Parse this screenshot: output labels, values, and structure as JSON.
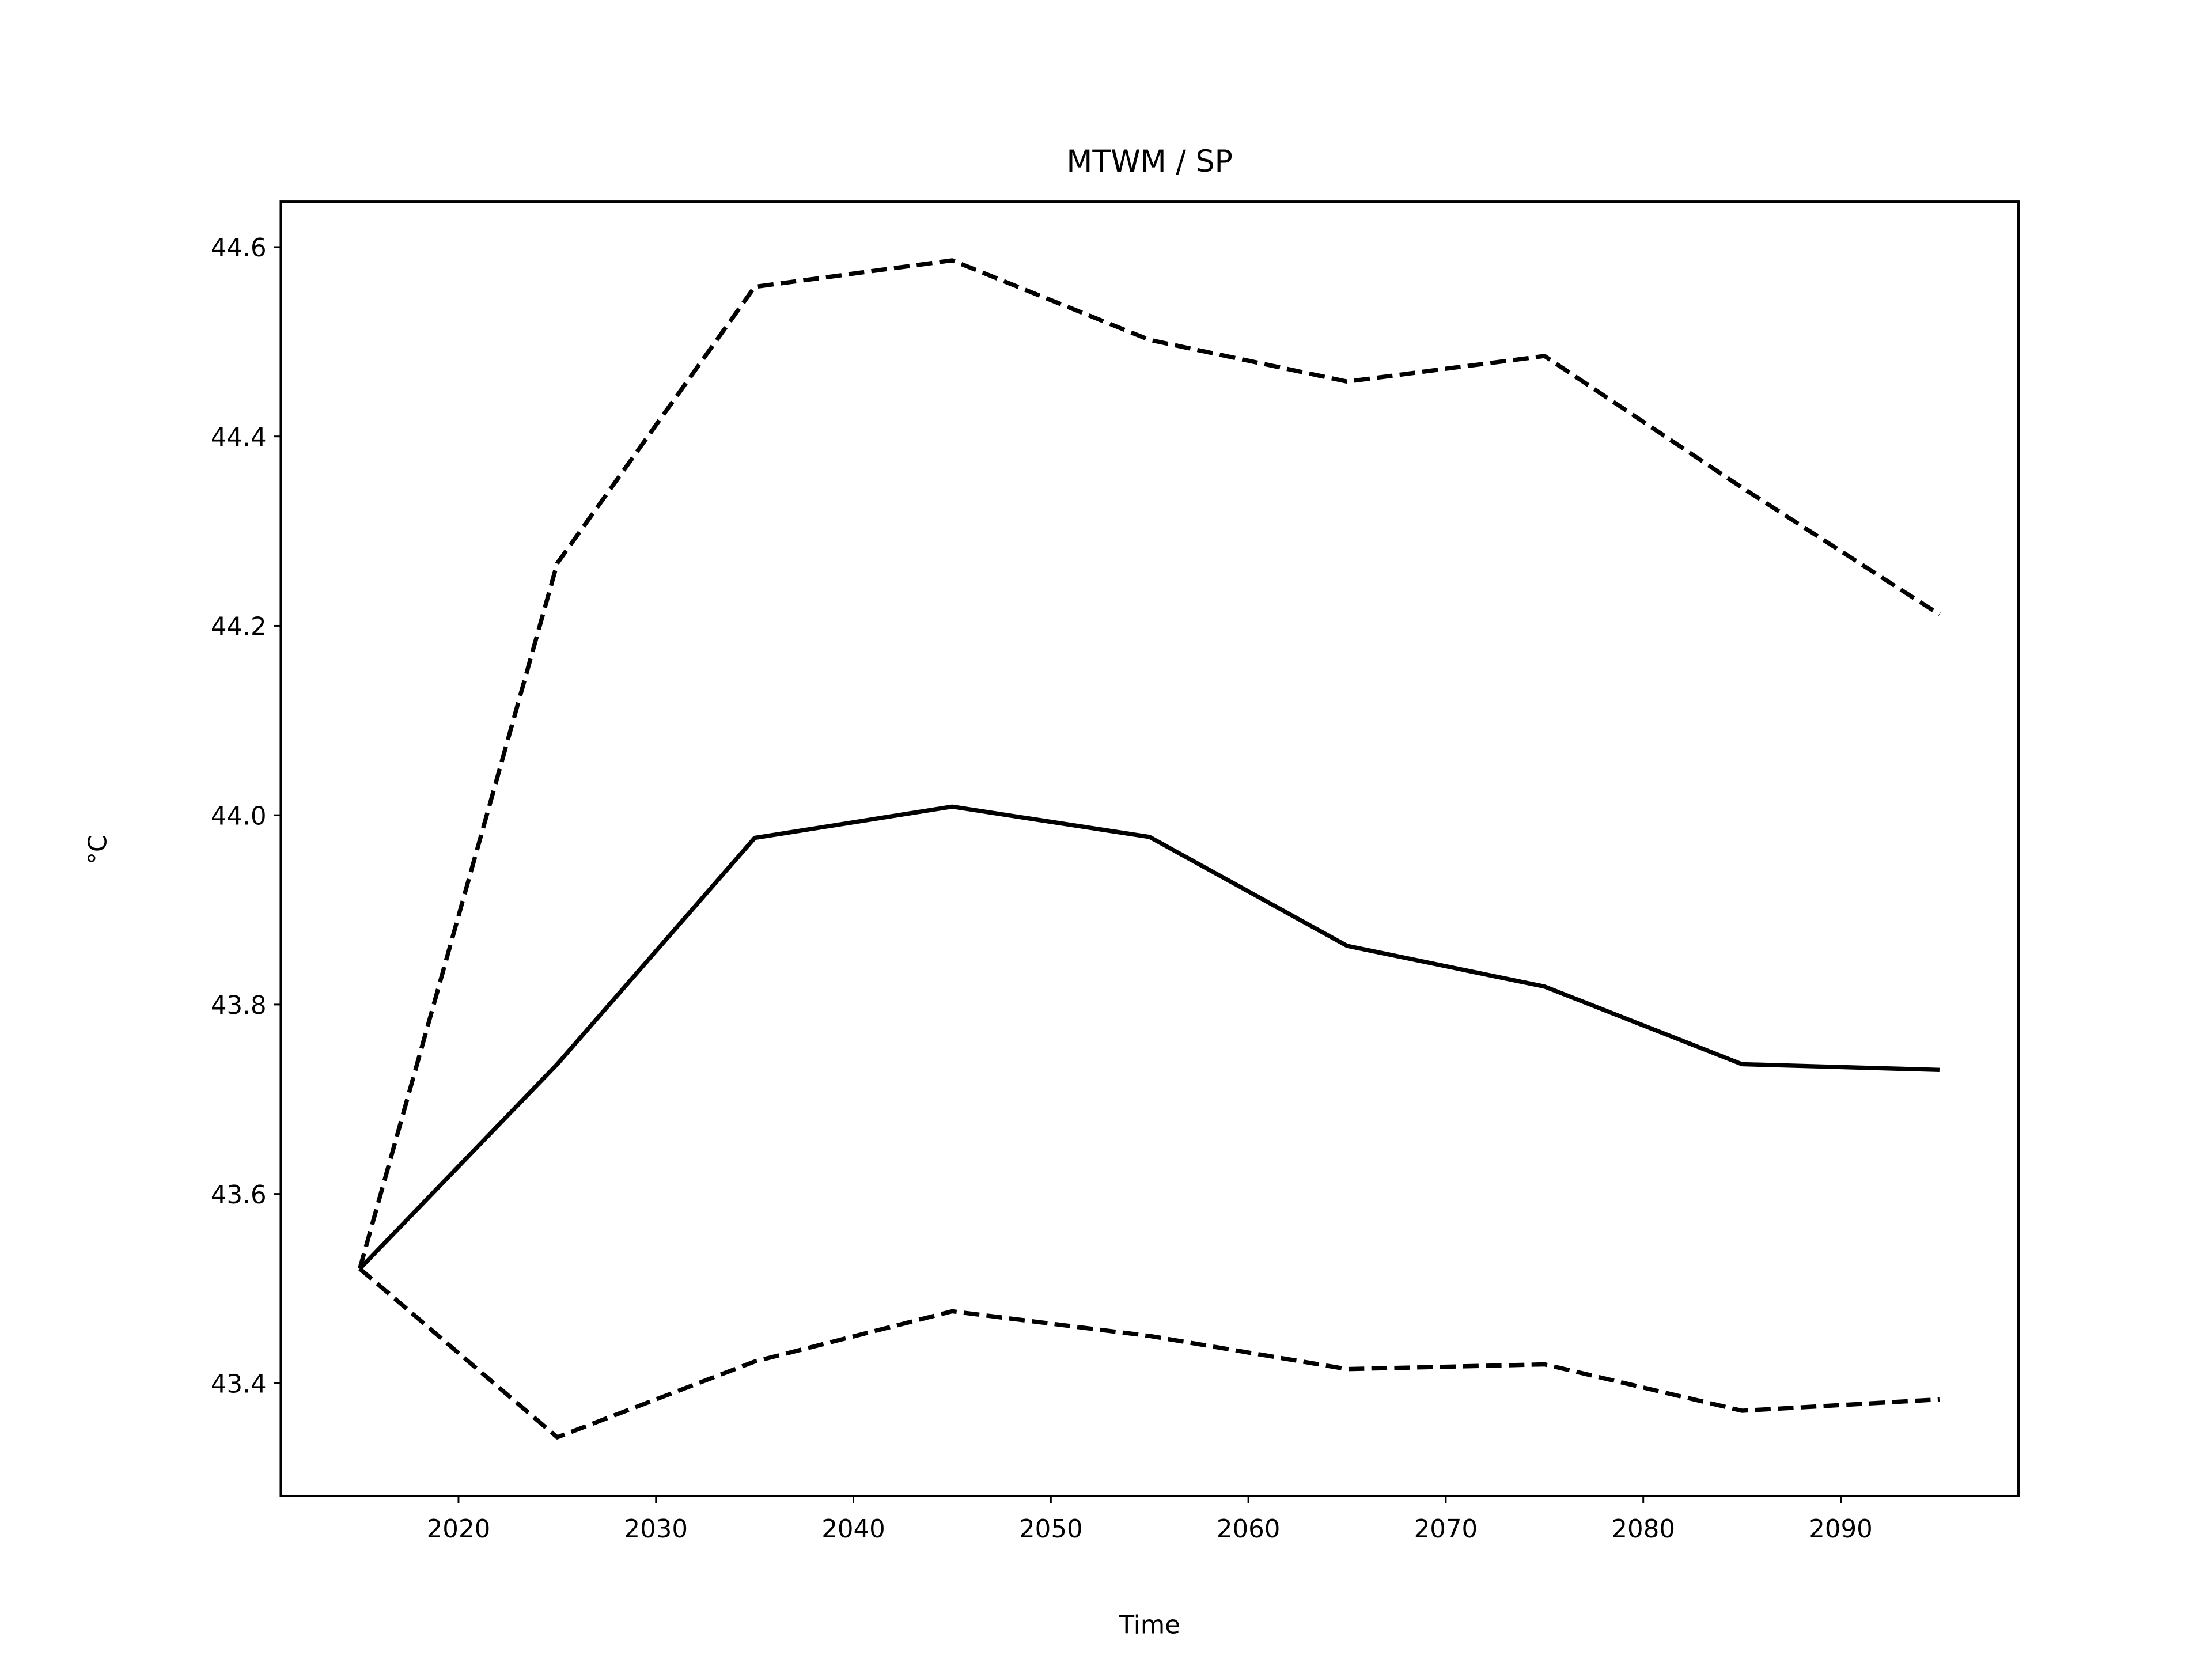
{
  "chart_data": {
    "type": "line",
    "title": "MTWM / SP",
    "xlabel": "Time",
    "ylabel": "°C",
    "x": [
      2015,
      2025,
      2035,
      2045,
      2055,
      2065,
      2075,
      2085,
      2095
    ],
    "series": [
      {
        "color": "#000000",
        "linestyle": "solid",
        "values": [
          43.521,
          43.737,
          43.976,
          44.009,
          43.977,
          43.862,
          43.819,
          43.737,
          43.731
        ]
      },
      {
        "color": "#000000",
        "linestyle": "dashed",
        "values": [
          43.521,
          44.266,
          44.558,
          44.586,
          44.502,
          44.458,
          44.485,
          44.346,
          44.212
        ]
      },
      {
        "color": "#000000",
        "linestyle": "dashed",
        "values": [
          43.521,
          43.343,
          43.423,
          43.476,
          43.45,
          43.415,
          43.42,
          43.371,
          43.383
        ]
      }
    ],
    "xlim": [
      2011,
      2099
    ],
    "xticks": [
      2020,
      2030,
      2040,
      2050,
      2060,
      2070,
      2080,
      2090
    ],
    "ylim": [
      43.281,
      44.648
    ],
    "yticks": [
      {
        "value": 43.4,
        "label": "43.4"
      },
      {
        "value": 43.6,
        "label": "43.6"
      },
      {
        "value": 43.8,
        "label": "43.8"
      },
      {
        "value": 44.0,
        "label": "44.0"
      },
      {
        "value": 44.2,
        "label": "44.2"
      },
      {
        "value": 44.4,
        "label": "44.4"
      },
      {
        "value": 44.6,
        "label": "44.6"
      }
    ],
    "grid": false
  }
}
